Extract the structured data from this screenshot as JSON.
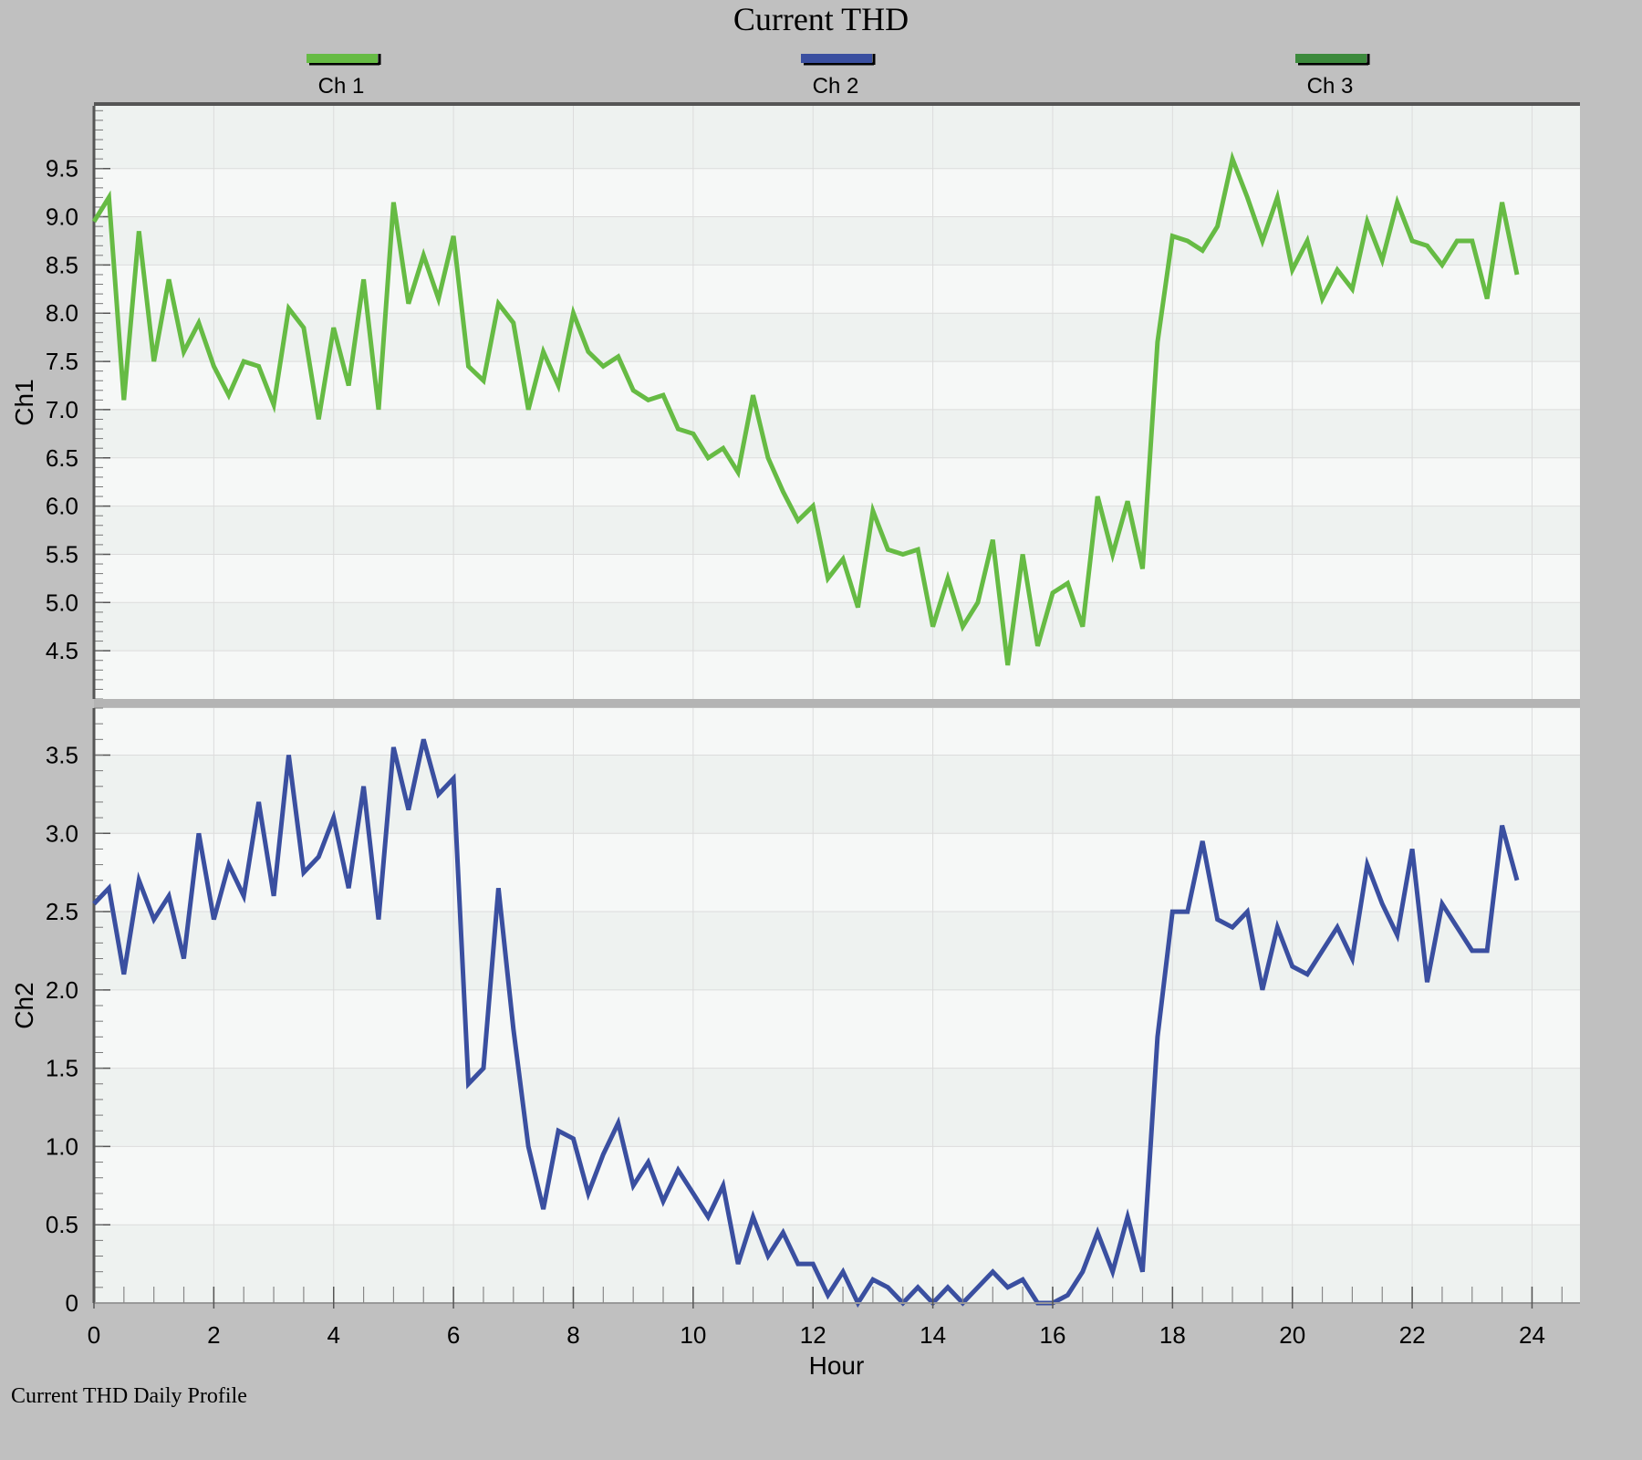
{
  "title": "Current THD",
  "footer": "Current THD Daily Profile",
  "legend": [
    {
      "label": "Ch 1",
      "color": "#66bb44"
    },
    {
      "label": "Ch 2",
      "color": "#3a4fa0"
    },
    {
      "label": "Ch 3",
      "color": "#3c8a3c"
    }
  ],
  "chart_data": {
    "type": "line",
    "xlabel": "Hour",
    "xlim": [
      0,
      24.8
    ],
    "x_ticks": [
      "0",
      "2",
      "4",
      "6",
      "8",
      "10",
      "12",
      "14",
      "16",
      "18",
      "20",
      "22",
      "24"
    ],
    "grid": true,
    "legend_position": "top",
    "panels": [
      {
        "ylabel": "Ch1",
        "ylim": [
          4.0,
          10.15
        ],
        "y_ticks": [
          "4.5",
          "5.0",
          "5.5",
          "6.0",
          "6.5",
          "7.0",
          "7.5",
          "8.0",
          "8.5",
          "9.0",
          "9.5"
        ],
        "series": [
          {
            "name": "Ch 1",
            "color": "#66bb44",
            "x": [
              0,
              0.25,
              0.5,
              0.75,
              1,
              1.25,
              1.5,
              1.75,
              2,
              2.25,
              2.5,
              2.75,
              3,
              3.25,
              3.5,
              3.75,
              4,
              4.25,
              4.5,
              4.75,
              5,
              5.25,
              5.5,
              5.75,
              6,
              6.25,
              6.5,
              6.75,
              7,
              7.25,
              7.5,
              7.75,
              8,
              8.25,
              8.5,
              8.75,
              9,
              9.25,
              9.5,
              9.75,
              10,
              10.25,
              10.5,
              10.75,
              11,
              11.25,
              11.5,
              11.75,
              12,
              12.25,
              12.5,
              12.75,
              13,
              13.25,
              13.5,
              13.75,
              14,
              14.25,
              14.5,
              14.75,
              15,
              15.25,
              15.5,
              15.75,
              16,
              16.25,
              16.5,
              16.75,
              17,
              17.25,
              17.5,
              17.75,
              18,
              18.25,
              18.5,
              18.75,
              19,
              19.25,
              19.5,
              19.75,
              20,
              20.25,
              20.5,
              20.75,
              21,
              21.25,
              21.5,
              21.75,
              22,
              22.25,
              22.5,
              22.75,
              23,
              23.25,
              23.5,
              23.75
            ],
            "values": [
              8.95,
              9.2,
              7.1,
              8.85,
              7.5,
              8.35,
              7.6,
              7.9,
              7.45,
              7.15,
              7.5,
              7.45,
              7.05,
              8.05,
              7.85,
              6.9,
              7.85,
              7.25,
              8.35,
              7.0,
              9.15,
              8.1,
              8.6,
              8.15,
              8.8,
              7.45,
              7.3,
              8.1,
              7.9,
              7.0,
              7.6,
              7.25,
              8.0,
              7.6,
              7.45,
              7.55,
              7.2,
              7.1,
              7.15,
              6.8,
              6.75,
              6.5,
              6.6,
              6.35,
              7.15,
              6.5,
              6.15,
              5.85,
              6.0,
              5.25,
              5.45,
              4.95,
              5.95,
              5.55,
              5.5,
              5.55,
              4.75,
              5.25,
              4.75,
              5.0,
              5.65,
              4.35,
              5.5,
              4.55,
              5.1,
              5.2,
              4.75,
              6.1,
              5.5,
              6.05,
              5.35,
              7.7,
              8.8,
              8.75,
              8.65,
              8.9,
              9.6,
              9.2,
              8.75,
              9.2,
              8.45,
              8.75,
              8.15,
              8.45,
              8.25,
              8.95,
              8.55,
              9.15,
              8.75,
              8.7,
              8.5,
              8.75,
              8.75,
              8.15,
              9.15,
              8.4
            ]
          }
        ]
      },
      {
        "ylabel": "Ch2",
        "ylim": [
          0,
          3.8
        ],
        "y_ticks": [
          "0",
          "0.5",
          "1.0",
          "1.5",
          "2.0",
          "2.5",
          "3.0",
          "3.5"
        ],
        "series": [
          {
            "name": "Ch 2",
            "color": "#3a4fa0",
            "x": [
              0,
              0.25,
              0.5,
              0.75,
              1,
              1.25,
              1.5,
              1.75,
              2,
              2.25,
              2.5,
              2.75,
              3,
              3.25,
              3.5,
              3.75,
              4,
              4.25,
              4.5,
              4.75,
              5,
              5.25,
              5.5,
              5.75,
              6,
              6.25,
              6.5,
              6.75,
              7,
              7.25,
              7.5,
              7.75,
              8,
              8.25,
              8.5,
              8.75,
              9,
              9.25,
              9.5,
              9.75,
              10,
              10.25,
              10.5,
              10.75,
              11,
              11.25,
              11.5,
              11.75,
              12,
              12.25,
              12.5,
              12.75,
              13,
              13.25,
              13.5,
              13.75,
              14,
              14.25,
              14.5,
              14.75,
              15,
              15.25,
              15.5,
              15.75,
              16,
              16.25,
              16.5,
              16.75,
              17,
              17.25,
              17.5,
              17.75,
              18,
              18.25,
              18.5,
              18.75,
              19,
              19.25,
              19.5,
              19.75,
              20,
              20.25,
              20.5,
              20.75,
              21,
              21.25,
              21.5,
              21.75,
              22,
              22.25,
              22.5,
              22.75,
              23,
              23.25,
              23.5,
              23.75
            ],
            "values": [
              2.55,
              2.65,
              2.1,
              2.7,
              2.45,
              2.6,
              2.2,
              3.0,
              2.45,
              2.8,
              2.6,
              3.2,
              2.6,
              3.5,
              2.75,
              2.85,
              3.1,
              2.65,
              3.3,
              2.45,
              3.55,
              3.15,
              3.6,
              3.25,
              3.35,
              1.4,
              1.5,
              2.65,
              1.75,
              1.0,
              0.6,
              1.1,
              1.05,
              0.7,
              0.95,
              1.15,
              0.75,
              0.9,
              0.65,
              0.85,
              0.7,
              0.55,
              0.75,
              0.25,
              0.55,
              0.3,
              0.45,
              0.25,
              0.25,
              0.05,
              0.2,
              0.0,
              0.15,
              0.1,
              0.0,
              0.1,
              0.0,
              0.1,
              0.0,
              0.1,
              0.2,
              0.1,
              0.15,
              0.0,
              0.0,
              0.05,
              0.2,
              0.45,
              0.2,
              0.55,
              0.2,
              1.7,
              2.5,
              2.5,
              2.95,
              2.45,
              2.4,
              2.5,
              2.0,
              2.4,
              2.15,
              2.1,
              2.25,
              2.4,
              2.2,
              2.8,
              2.55,
              2.35,
              2.9,
              2.05,
              2.55,
              2.4,
              2.25,
              2.25,
              3.05,
              2.7
            ]
          }
        ]
      }
    ]
  }
}
